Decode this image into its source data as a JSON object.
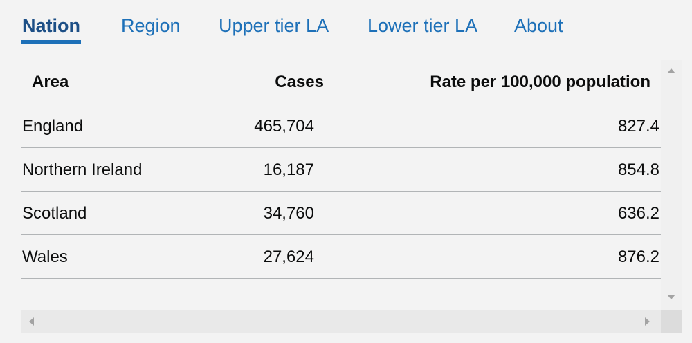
{
  "tabs": [
    {
      "label": "Nation",
      "active": true
    },
    {
      "label": "Region",
      "active": false
    },
    {
      "label": "Upper tier LA",
      "active": false
    },
    {
      "label": "Lower tier LA",
      "active": false
    },
    {
      "label": "About",
      "active": false
    }
  ],
  "table": {
    "columns": [
      "Area",
      "Cases",
      "Rate per 100,000 population"
    ],
    "rows": [
      [
        "England",
        "465,704",
        "827.4"
      ],
      [
        "Northern Ireland",
        "16,187",
        "854.8"
      ],
      [
        "Scotland",
        "34,760",
        "636.2"
      ],
      [
        "Wales",
        "27,624",
        "876.2"
      ]
    ]
  },
  "scrollbars": {
    "vertical": {
      "up_icon": "triangle-up-icon",
      "down_icon": "triangle-down-icon"
    },
    "horizontal": {
      "left_icon": "triangle-left-icon",
      "right_icon": "triangle-right-icon"
    }
  },
  "colors": {
    "link": "#1d70b8",
    "active_tab": "#1d4f86",
    "divider": "#b1b4b6",
    "background": "#f3f3f3"
  }
}
